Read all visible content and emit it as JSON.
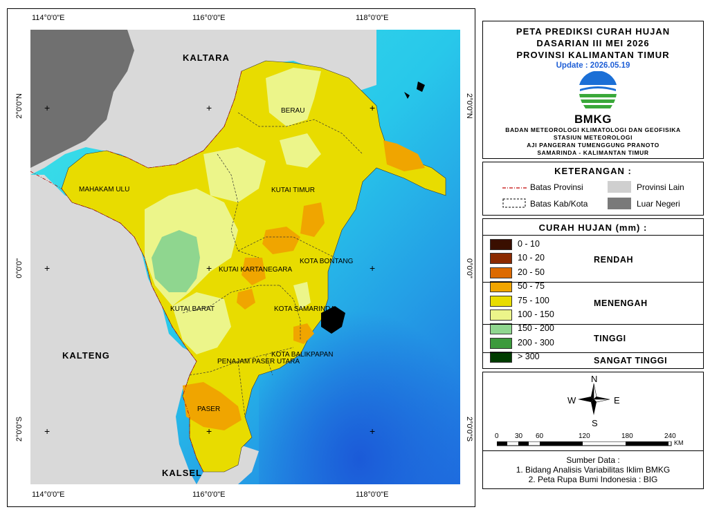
{
  "map": {
    "coords_top": [
      "114°0'0\"E",
      "116°0'0\"E",
      "118°0'0\"E"
    ],
    "coords_bottom": [
      "114°0'0\"E",
      "116°0'0\"E",
      "118°0'0\"E"
    ],
    "coords_left": [
      "2°0'0\"N",
      "0°0'0\"",
      "2°0'0\"S"
    ],
    "coords_right": [
      "2°0'0\"N",
      "0°0'0\"",
      "2°0'0\"S"
    ],
    "regions": {
      "kaltara": "KALTARA",
      "kalteng": "KALTENG",
      "kalsel": "KALSEL",
      "berau": "BERAU",
      "mahakam_ulu": "MAHAKAM ULU",
      "kutai_timur": "KUTAI TIMUR",
      "kota_bontang": "KOTA BONTANG",
      "kutai_kartanegara": "KUTAI KARTANEGARA",
      "kutai_barat": "KUTAI BARAT",
      "kota_samarinda": "KOTA SAMARINDA",
      "kota_balikpapan": "KOTA BALIKPAPAN",
      "penajam_paser_utara": "PENAJAM PASER UTARA",
      "paser": "PASER"
    }
  },
  "title": {
    "line1": "PETA PREDIKSI CURAH HUJAN",
    "line2": "DASARIAN III MEI 2026",
    "line3": "PROVINSI KALIMANTAN TIMUR",
    "update": "Update : 2026.05.19",
    "logo_text": "BMKG",
    "agency1": "BADAN METEOROLOGI KLIMATOLOGI DAN GEOFISIKA",
    "agency2": "STASIUN METEOROLOGI",
    "agency3": "AJI PANGERAN TUMENGGUNG PRANOTO",
    "agency4": "SAMARINDA - KALIMANTAN TIMUR"
  },
  "keterangan": {
    "heading": "KETERANGAN :",
    "batas_provinsi": "Batas Provinsi",
    "batas_kab": "Batas Kab/Kota",
    "provinsi_lain": "Provinsi Lain",
    "luar_negeri": "Luar Negeri"
  },
  "curah_hujan": {
    "heading": "CURAH HUJAN (mm) :",
    "classes": [
      {
        "label": "0 - 10",
        "color": "#3a0f00"
      },
      {
        "label": "10 - 20",
        "color": "#8b2a00"
      },
      {
        "label": "20 - 50",
        "color": "#dc6a00"
      },
      {
        "label": "50 - 75",
        "color": "#f0a500"
      },
      {
        "label": "75 - 100",
        "color": "#e8dc00"
      },
      {
        "label": "100 - 150",
        "color": "#ecf58a"
      },
      {
        "label": "150 - 200",
        "color": "#8fd68f"
      },
      {
        "label": "200 - 300",
        "color": "#3c9a3c"
      },
      {
        "label": "> 300",
        "color": "#003c00"
      }
    ],
    "categories": {
      "rendah": "RENDAH",
      "menengah": "MENENGAH",
      "tinggi": "TINGGI",
      "sangat_tinggi": "SANGAT TINGGI"
    }
  },
  "compass": {
    "n": "N",
    "s": "S",
    "e": "E",
    "w": "W"
  },
  "scale": {
    "ticks": [
      "0",
      "30",
      "60",
      "120",
      "180",
      "240"
    ],
    "unit": "KM"
  },
  "sumber": {
    "heading": "Sumber Data :",
    "line1": "1. Bidang Analisis Variabilitas Iklim BMKG",
    "line2": "2. Peta Rupa Bumi Indonesia : BIG"
  }
}
